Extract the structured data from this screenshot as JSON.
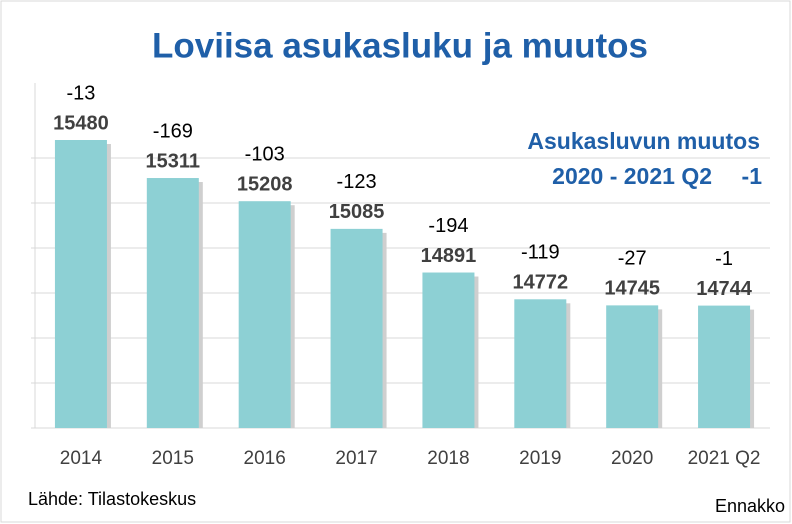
{
  "chart_data": {
    "type": "bar",
    "title": "Loviisa asukasluku ja muutos",
    "categories": [
      "2014",
      "2015",
      "2016",
      "2017",
      "2018",
      "2019",
      "2020",
      "2021 Q2"
    ],
    "values": [
      15480,
      15311,
      15208,
      15085,
      14891,
      14772,
      14745,
      14744
    ],
    "changes": [
      -13,
      -169,
      -103,
      -123,
      -194,
      -119,
      -27,
      -1
    ],
    "color": "#8dd0d4",
    "ylim": [
      14200,
      15600
    ],
    "yticks": [
      14200,
      14400,
      14600,
      14800,
      15000,
      15200,
      15400
    ],
    "grid": true,
    "annotation": [
      "Asukasluvun muutos",
      "2020 - 2021 Q2",
      "-1"
    ],
    "source": "Lähde: Tilastokeskus",
    "note": "Ennakko"
  }
}
